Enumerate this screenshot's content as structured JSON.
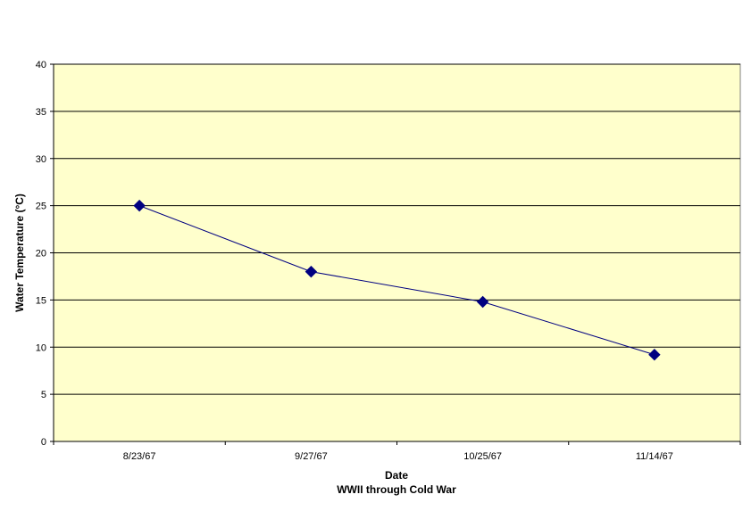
{
  "chart_data": {
    "type": "line",
    "categories": [
      "8/23/67",
      "9/27/67",
      "10/25/67",
      "11/14/67"
    ],
    "series": [
      {
        "values": [
          25,
          18,
          14.8,
          9.2
        ],
        "color": "#000080"
      }
    ],
    "xlabel": "Date",
    "xlabel_sub": "WWII through Cold War",
    "ylabel": "Water Temperature (°C)",
    "ylim": [
      0,
      40
    ],
    "yticks": [
      0,
      5,
      10,
      15,
      20,
      25,
      30,
      35,
      40
    ],
    "grid": true,
    "plot_background": "#FFFFCC",
    "line_color": "#000080",
    "marker": "diamond",
    "legend": "none"
  }
}
